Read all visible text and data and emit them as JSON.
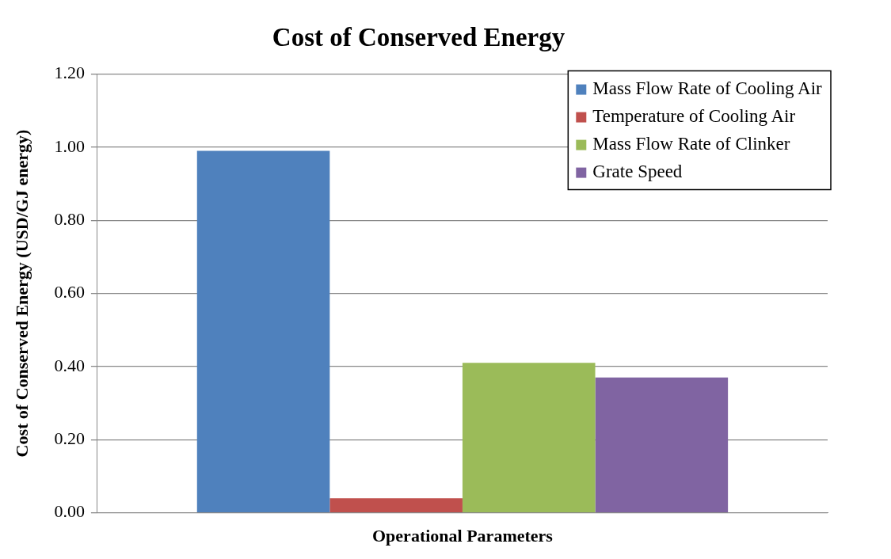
{
  "chart_data": {
    "type": "bar",
    "title": "Cost of Conserved Energy",
    "xlabel": "Operational Parameters",
    "ylabel": "Cost of Conserved Energy (USD/GJ energy)",
    "categories": [
      null
    ],
    "series": [
      {
        "name": "Mass Flow Rate of Cooling Air",
        "color": "#4f81bd",
        "values": [
          0.99
        ]
      },
      {
        "name": "Temperature of Cooling Air",
        "color": "#c0504d",
        "values": [
          0.04
        ]
      },
      {
        "name": "Mass Flow Rate of Clinker",
        "color": "#9bbb59",
        "values": [
          0.41
        ]
      },
      {
        "name": "Grate Speed",
        "color": "#8064a2",
        "values": [
          0.37
        ]
      }
    ],
    "ylim": [
      0,
      1.2
    ],
    "yticks": [
      {
        "value": 0,
        "label": "0.00"
      },
      {
        "value": 0.2,
        "label": "0.20"
      },
      {
        "value": 0.4,
        "label": "0.40"
      },
      {
        "value": 0.6,
        "label": "0.60"
      },
      {
        "value": 0.8,
        "label": "0.80"
      },
      {
        "value": 1,
        "label": "1.00"
      },
      {
        "value": 1.2,
        "label": "1.20"
      }
    ],
    "grid": "y",
    "legend": "top right"
  }
}
